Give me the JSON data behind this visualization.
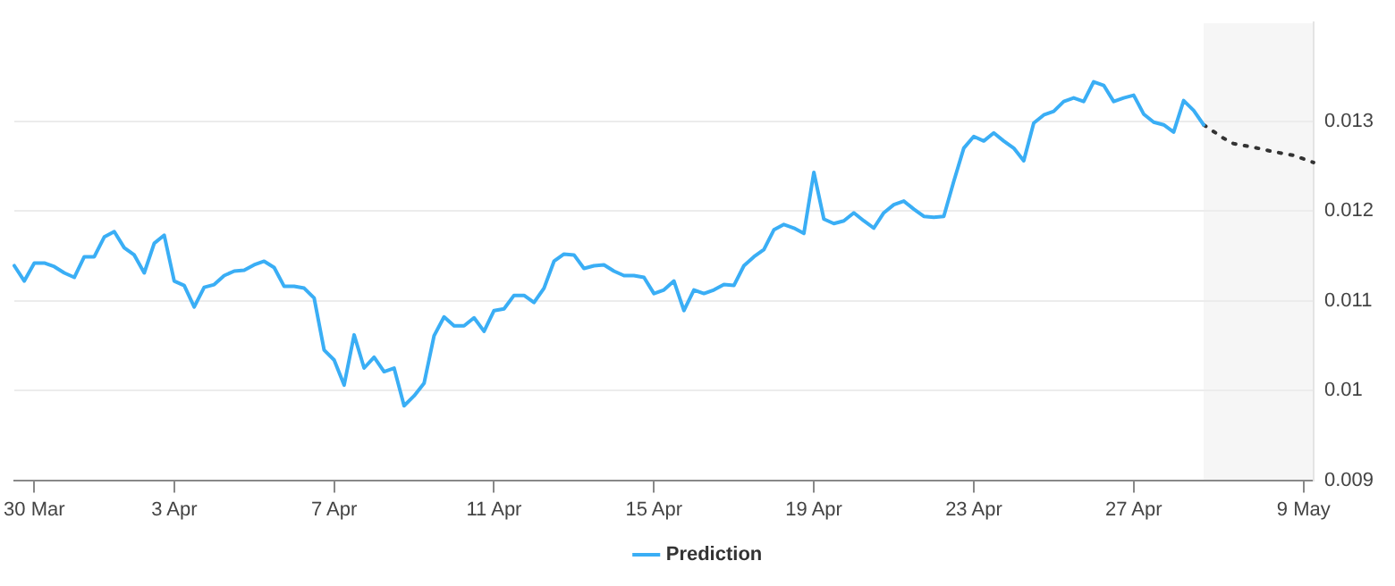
{
  "chart_data": {
    "type": "line",
    "legend": "bottom",
    "grid": "y",
    "marker": "none",
    "categories": [
      null,
      null,
      "30 Mar",
      null,
      null,
      null,
      null,
      null,
      null,
      null,
      null,
      null,
      null,
      null,
      null,
      null,
      "3 Apr",
      null,
      null,
      null,
      null,
      null,
      null,
      null,
      null,
      null,
      null,
      null,
      null,
      null,
      null,
      null,
      "7 Apr",
      null,
      null,
      null,
      null,
      null,
      null,
      null,
      null,
      null,
      null,
      null,
      null,
      null,
      null,
      null,
      "11 Apr",
      null,
      null,
      null,
      null,
      null,
      null,
      null,
      null,
      null,
      null,
      null,
      null,
      null,
      null,
      null,
      "15 Apr",
      null,
      null,
      null,
      null,
      null,
      null,
      null,
      null,
      null,
      null,
      null,
      null,
      null,
      null,
      null,
      "19 Apr",
      null,
      null,
      null,
      null,
      null,
      null,
      null,
      null,
      null,
      null,
      null,
      null,
      null,
      null,
      null,
      "23 Apr",
      null,
      null,
      null,
      null,
      null,
      null,
      null,
      null,
      null,
      null,
      null,
      null,
      null,
      null,
      null,
      "27 Apr",
      null,
      null,
      null,
      null,
      null,
      null,
      null,
      null,
      null,
      null,
      null,
      null,
      null,
      null,
      null,
      null,
      "9 May",
      null
    ],
    "ylim": [
      0.009,
      0.0141
    ],
    "yticks": [
      0.009,
      0.01,
      0.011,
      0.012,
      0.013
    ],
    "series": [
      {
        "name": "Prediction",
        "color": "#3aaef5",
        "line_style": "solid",
        "values": [
          0.01139,
          0.01122,
          0.01142,
          0.01142,
          0.01138,
          0.01131,
          0.01126,
          0.01149,
          0.01149,
          0.01171,
          0.01177,
          0.01159,
          0.01151,
          0.01131,
          0.01164,
          0.01173,
          0.01122,
          0.01117,
          0.01093,
          0.01115,
          0.01118,
          0.01128,
          0.01133,
          0.01134,
          0.0114,
          0.01144,
          0.01137,
          0.01116,
          0.01116,
          0.01114,
          0.01103,
          0.01045,
          0.01034,
          0.01006,
          0.01062,
          0.01025,
          0.01037,
          0.01021,
          0.01025,
          0.00983,
          0.00994,
          0.01008,
          0.01061,
          0.01082,
          0.01072,
          0.01072,
          0.01081,
          0.01066,
          0.01089,
          0.01091,
          0.01106,
          0.01106,
          0.01098,
          0.01114,
          0.01144,
          0.01152,
          0.01151,
          0.01136,
          0.01139,
          0.0114,
          0.01133,
          0.01128,
          0.01128,
          0.01126,
          0.01108,
          0.01112,
          0.01122,
          0.01089,
          0.01112,
          0.01108,
          0.01112,
          0.01118,
          0.01117,
          0.01139,
          0.01149,
          0.01157,
          0.01179,
          0.01185,
          0.01181,
          0.01175,
          0.01243,
          0.01191,
          0.01186,
          0.01189,
          0.01198,
          0.01189,
          0.01181,
          0.01198,
          0.01207,
          0.01211,
          0.01202,
          0.01194,
          0.01193,
          0.01194,
          0.01233,
          0.0127,
          0.01283,
          0.01278,
          0.01287,
          0.01278,
          0.0127,
          0.01256,
          0.01298,
          0.01307,
          0.01311,
          0.01322,
          0.01326,
          0.01322,
          0.01344,
          0.0134,
          0.01322,
          0.01326,
          0.01329,
          0.01308,
          0.01299,
          0.01296,
          0.01288,
          0.01323,
          0.01312,
          0.01296,
          null,
          null,
          null,
          null,
          null,
          null,
          null,
          null,
          null,
          null,
          null
        ]
      },
      {
        "color": "#333333",
        "line_style": "dotted",
        "values": [
          null,
          null,
          null,
          null,
          null,
          null,
          null,
          null,
          null,
          null,
          null,
          null,
          null,
          null,
          null,
          null,
          null,
          null,
          null,
          null,
          null,
          null,
          null,
          null,
          null,
          null,
          null,
          null,
          null,
          null,
          null,
          null,
          null,
          null,
          null,
          null,
          null,
          null,
          null,
          null,
          null,
          null,
          null,
          null,
          null,
          null,
          null,
          null,
          null,
          null,
          null,
          null,
          null,
          null,
          null,
          null,
          null,
          null,
          null,
          null,
          null,
          null,
          null,
          null,
          null,
          null,
          null,
          null,
          null,
          null,
          null,
          null,
          null,
          null,
          null,
          null,
          null,
          null,
          null,
          null,
          null,
          null,
          null,
          null,
          null,
          null,
          null,
          null,
          null,
          null,
          null,
          null,
          null,
          null,
          null,
          null,
          null,
          null,
          null,
          null,
          null,
          null,
          null,
          null,
          null,
          null,
          null,
          null,
          null,
          null,
          null,
          null,
          null,
          null,
          null,
          null,
          null,
          null,
          null,
          0.01296,
          null,
          0.01281,
          0.01275,
          null,
          0.01271,
          null,
          0.01266,
          null,
          0.01262,
          null,
          0.01254
        ]
      }
    ]
  }
}
